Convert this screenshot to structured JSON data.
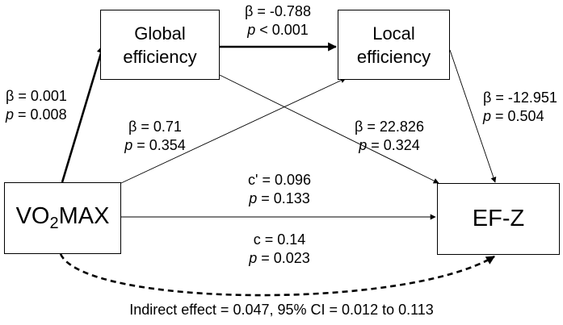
{
  "nodes": {
    "global": {
      "line1": "Global",
      "line2": "efficiency"
    },
    "local": {
      "line1": "Local",
      "line2": "efficiency"
    },
    "vo2": {
      "pre": "VO",
      "sub": "2",
      "post": "MAX"
    },
    "efz": {
      "label": "EF-Z"
    }
  },
  "paths": {
    "vo2_global": {
      "beta": "β = 0.001",
      "p_sym": "p",
      "p_val": " = 0.008"
    },
    "global_local": {
      "beta": "β = -0.788",
      "p_sym": "p",
      "p_val": " < 0.001"
    },
    "vo2_local": {
      "beta": "β = 0.71",
      "p_sym": "p",
      "p_val": " = 0.354"
    },
    "global_efz": {
      "beta": "β = 22.826",
      "p_sym": "p",
      "p_val": " = 0.324"
    },
    "local_efz": {
      "beta": "β = -12.951",
      "p_sym": "p",
      "p_val": " = 0.504"
    },
    "direct": {
      "coef": "c' = 0.096",
      "p_sym": "p",
      "p_val": " = 0.133"
    },
    "total": {
      "coef": "c = 0.14",
      "p_sym": "p",
      "p_val": " = 0.023"
    }
  },
  "footnote": "Indirect effect = 0.047, 95% CI = 0.012 to 0.113"
}
